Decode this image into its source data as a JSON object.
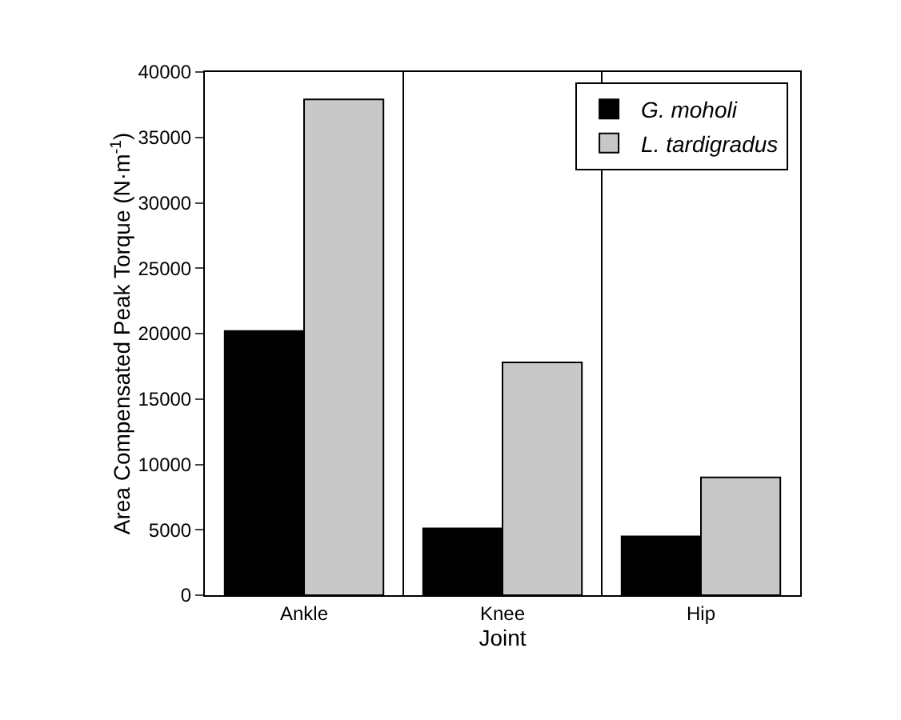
{
  "chart_data": {
    "type": "bar",
    "xlabel": "Joint",
    "ylabel": "Area Compensated Peak Torque (N·m$^{-1}$)",
    "categories": [
      "Ankle",
      "Knee",
      "Hip"
    ],
    "series": [
      {
        "name": "G. moholi",
        "color": "#000000",
        "values": [
          20200,
          5100,
          4500
        ]
      },
      {
        "name": "L. tardigradus",
        "color": "#c8c8c8",
        "values": [
          37900,
          17800,
          9000
        ]
      }
    ],
    "ylim": [
      0,
      40000
    ],
    "yticks": [
      0,
      5000,
      10000,
      15000,
      20000,
      25000,
      30000,
      35000,
      40000
    ],
    "grid": "x",
    "legend": "top right"
  }
}
